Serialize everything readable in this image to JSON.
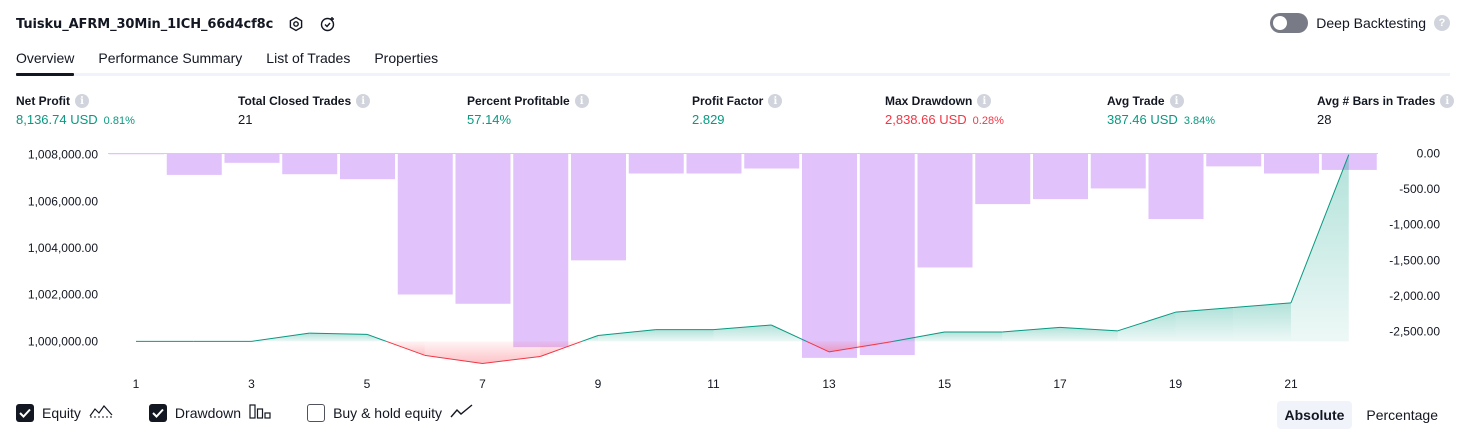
{
  "header": {
    "strategy_name": "Tuisku_AFRM_30Min_1ICH_66d4cf8c",
    "deep_backtesting_label": "Deep Backtesting",
    "help_glyph": "?"
  },
  "tabs": [
    {
      "label": "Overview",
      "active": true
    },
    {
      "label": "Performance Summary",
      "active": false
    },
    {
      "label": "List of Trades",
      "active": false
    },
    {
      "label": "Properties",
      "active": false
    }
  ],
  "stats": [
    {
      "label": "Net Profit",
      "value": "8,136.74 USD",
      "pct": "0.81%",
      "tone": "pos"
    },
    {
      "label": "Total Closed Trades",
      "value": "21",
      "pct": "",
      "tone": "neutral"
    },
    {
      "label": "Percent Profitable",
      "value": "57.14%",
      "pct": "",
      "tone": "pos"
    },
    {
      "label": "Profit Factor",
      "value": "2.829",
      "pct": "",
      "tone": "pos"
    },
    {
      "label": "Max Drawdown",
      "value": "2,838.66 USD",
      "pct": "0.28%",
      "tone": "neg"
    },
    {
      "label": "Avg Trade",
      "value": "387.46 USD",
      "pct": "3.84%",
      "tone": "pos"
    },
    {
      "label": "Avg # Bars in Trades",
      "value": "28",
      "pct": "",
      "tone": "neutral"
    }
  ],
  "info_glyph": "i",
  "chart_data": {
    "type": "line",
    "x": [
      1,
      2,
      3,
      4,
      5,
      6,
      7,
      8,
      9,
      10,
      11,
      12,
      13,
      14,
      15,
      16,
      17,
      18,
      19,
      20,
      21,
      22
    ],
    "x_tick_labels": [
      "1",
      "3",
      "5",
      "7",
      "9",
      "11",
      "13",
      "15",
      "17",
      "19",
      "21"
    ],
    "left_axis": {
      "ticks": [
        "1,008,000.00",
        "1,006,000.00",
        "1,004,000.00",
        "1,002,000.00",
        "1,000,000.00"
      ],
      "ylim": [
        999200,
        1008200
      ]
    },
    "right_axis": {
      "ticks": [
        "0.00",
        "-500.00",
        "-1,000.00",
        "-1,500.00",
        "-2,000.00",
        "-2,500.00"
      ],
      "ylim": [
        -2900,
        50
      ]
    },
    "series": [
      {
        "name": "Equity",
        "axis": "left",
        "values": [
          1000000,
          1000000,
          1000000,
          1000350,
          1000300,
          999400,
          999050,
          999350,
          1000250,
          1000500,
          1000500,
          1000700,
          999550,
          999950,
          1000400,
          1000400,
          1000600,
          1000450,
          1001250,
          1001450,
          1001650,
          1008000
        ],
        "color": "#089981",
        "negative_color": "#f23645"
      },
      {
        "name": "Drawdown",
        "axis": "right",
        "values": [
          -10,
          -300,
          -130,
          -290,
          -360,
          -1980,
          -2110,
          -2720,
          -1500,
          -280,
          -280,
          -210,
          -2870,
          -2830,
          -1600,
          -710,
          -640,
          -490,
          -920,
          -180,
          -280,
          -230
        ],
        "color": "#e1c2fb"
      }
    ]
  },
  "legend": [
    {
      "label": "Equity",
      "checked": true,
      "icon": "equity-line-icon"
    },
    {
      "label": "Drawdown",
      "checked": true,
      "icon": "drawdown-bars-icon"
    },
    {
      "label": "Buy & hold equity",
      "checked": false,
      "icon": "buy-hold-line-icon"
    }
  ],
  "modes": [
    {
      "label": "Absolute",
      "active": true
    },
    {
      "label": "Percentage",
      "active": false
    }
  ]
}
